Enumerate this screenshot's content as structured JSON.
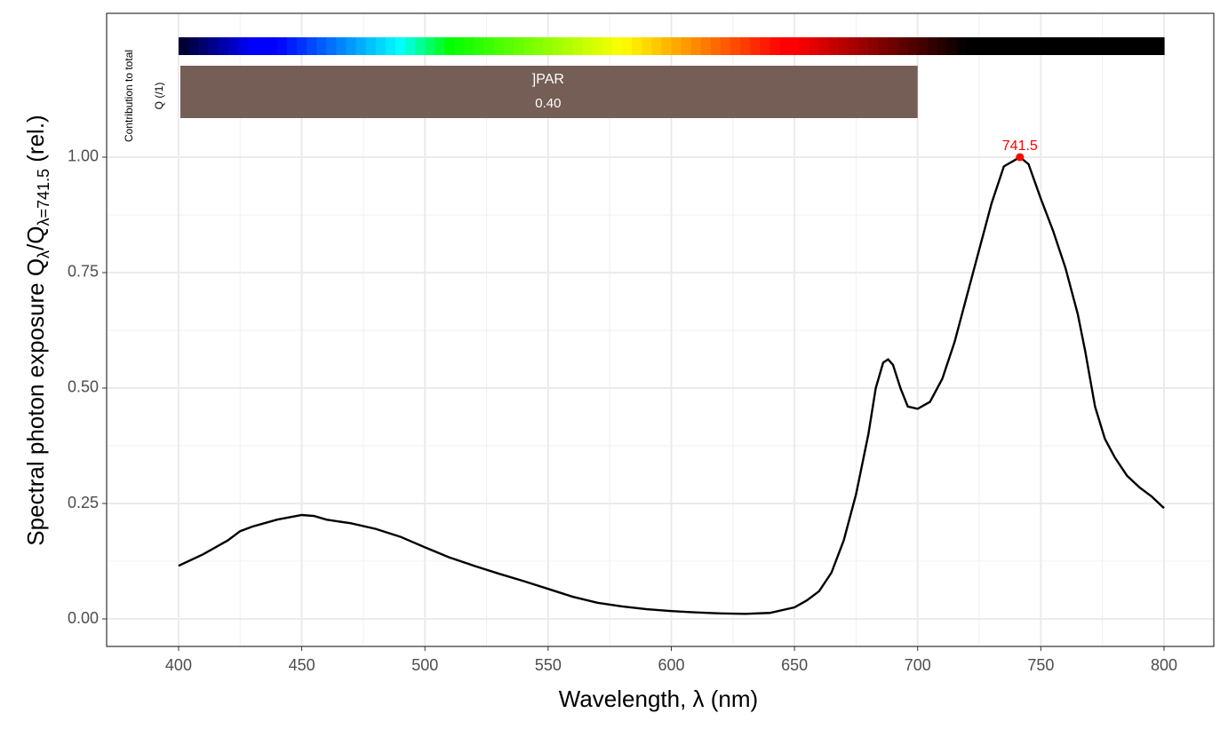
{
  "chart_data": {
    "type": "line",
    "x_label": "Wavelength, λ (nm)",
    "y_label": {
      "main": "Spectral  photon  exposure  Q",
      "sub1": "λ",
      "mid": "/Q",
      "sub2": "λ=741.5",
      "end": "  (rel.)"
    },
    "side_label": [
      "Contribution  to  total",
      "Q  (/1)"
    ],
    "xlim": [
      370.8,
      820.2
    ],
    "ylim": [
      -0.0596,
      1.3115
    ],
    "xticks": [
      400,
      450,
      500,
      550,
      600,
      650,
      700,
      750,
      800
    ],
    "yticks": [
      {
        "value": 0,
        "label": "0.00"
      },
      {
        "value": 0.25,
        "label": "0.25"
      },
      {
        "value": 0.5,
        "label": "0.50"
      },
      {
        "value": 0.75,
        "label": "0.75"
      },
      {
        "value": 1,
        "label": "1.00"
      }
    ],
    "grid": true,
    "series": [
      {
        "color": "#000000",
        "x": [
          400,
          410,
          420,
          425,
          430,
          440,
          450,
          455,
          460,
          470,
          480,
          490,
          500,
          510,
          520,
          530,
          540,
          550,
          560,
          570,
          580,
          590,
          600,
          610,
          620,
          630,
          640,
          650,
          655,
          660,
          665,
          670,
          675,
          680,
          683,
          686,
          688,
          690,
          693,
          696,
          700,
          705,
          710,
          715,
          720,
          725,
          730,
          735,
          741.5,
          745,
          750,
          755,
          760,
          765,
          768,
          772,
          776,
          780,
          785,
          790,
          795,
          800
        ],
        "values": [
          0.115,
          0.14,
          0.17,
          0.19,
          0.2,
          0.215,
          0.225,
          0.223,
          0.215,
          0.207,
          0.195,
          0.178,
          0.155,
          0.133,
          0.115,
          0.098,
          0.082,
          0.065,
          0.048,
          0.035,
          0.027,
          0.021,
          0.017,
          0.014,
          0.012,
          0.011,
          0.013,
          0.025,
          0.04,
          0.06,
          0.1,
          0.17,
          0.27,
          0.4,
          0.5,
          0.555,
          0.562,
          0.55,
          0.5,
          0.46,
          0.455,
          0.47,
          0.52,
          0.6,
          0.7,
          0.8,
          0.9,
          0.98,
          1.0,
          0.985,
          0.91,
          0.84,
          0.76,
          0.66,
          0.58,
          0.46,
          0.39,
          0.35,
          0.31,
          0.285,
          0.265,
          0.24
        ]
      }
    ],
    "peak": {
      "x": 741.5,
      "value": 1.0,
      "label": "741.5",
      "color": "#ff0000"
    },
    "spectrum_band": [
      400,
      800
    ],
    "bands": [
      {
        "label": "]PAR",
        "x": [
          400,
          700
        ],
        "value": 0.4,
        "value_label": "0.40",
        "color": "#745e55"
      }
    ]
  }
}
